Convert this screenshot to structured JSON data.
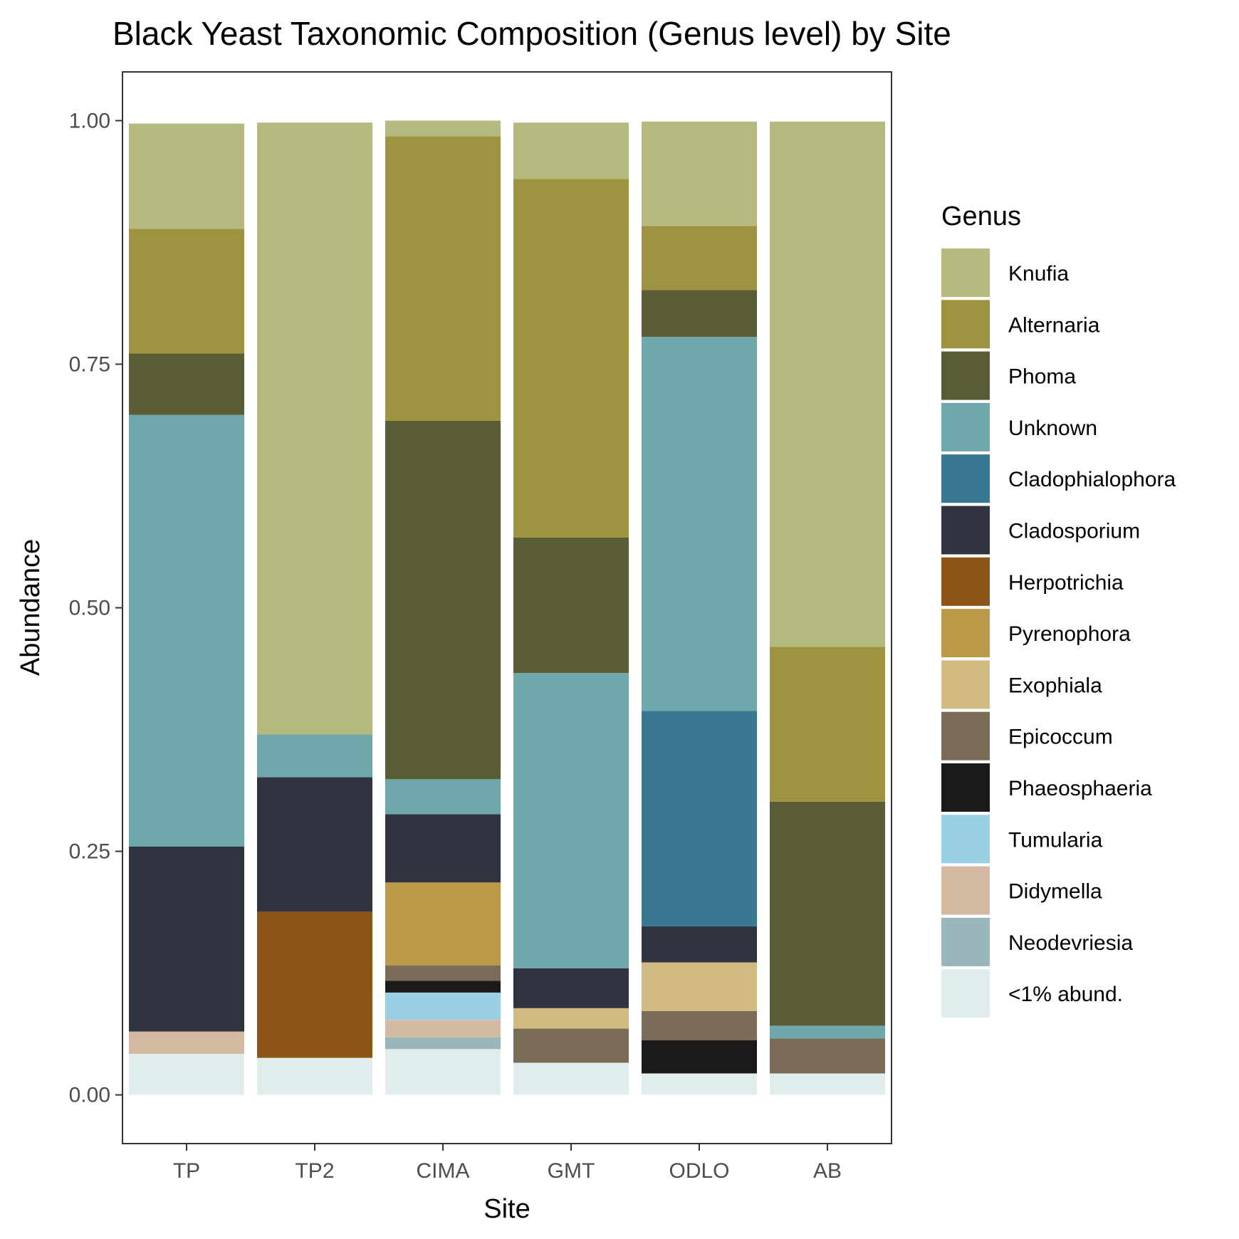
{
  "chart_data": {
    "type": "bar",
    "stacked": true,
    "title": "Black Yeast Taxonomic Composition (Genus level) by Site",
    "xlabel": "Site",
    "ylabel": "Abundance",
    "ylim": [
      -0.05,
      1.05
    ],
    "yticks": [
      0,
      0.25,
      0.5,
      0.75,
      1
    ],
    "ytick_labels": [
      "0.00",
      "0.25",
      "0.50",
      "0.75",
      "1.00"
    ],
    "grid": false,
    "legend": {
      "title": "Genus",
      "placement": "right"
    },
    "categories": [
      "TP",
      "TP2",
      "CIMA",
      "GMT",
      "ODLO",
      "AB"
    ],
    "series": [
      {
        "name": "<1% abund.",
        "color": "#E1EDEC",
        "values": [
          0.042,
          0.038,
          0.047,
          0.033,
          0.022,
          0.022
        ]
      },
      {
        "name": "Neodevriesia",
        "color": "#9AB6BD",
        "values": [
          0,
          0,
          0.012,
          0,
          0,
          0
        ]
      },
      {
        "name": "Didymella",
        "color": "#D4BAA2",
        "values": [
          0.023,
          0,
          0.018,
          0,
          0,
          0
        ]
      },
      {
        "name": "Tumularia",
        "color": "#99D0E5",
        "values": [
          0,
          0,
          0.028,
          0,
          0,
          0
        ]
      },
      {
        "name": "Phaeosphaeria",
        "color": "#1C1A18",
        "values": [
          0,
          0,
          0.012,
          0,
          0.034,
          0
        ]
      },
      {
        "name": "Epicoccum",
        "color": "#7B6C57",
        "values": [
          0,
          0,
          0.016,
          0.035,
          0.03,
          0.036
        ]
      },
      {
        "name": "Exophiala",
        "color": "#D1BB82",
        "values": [
          0,
          0,
          0,
          0.021,
          0.05,
          0
        ]
      },
      {
        "name": "Pyrenophora",
        "color": "#BA9A47",
        "values": [
          0,
          0,
          0.085,
          0,
          0,
          0
        ]
      },
      {
        "name": "Herpotrichia",
        "color": "#8C5515",
        "values": [
          0,
          0.15,
          0,
          0,
          0,
          0
        ]
      },
      {
        "name": "Cladosporium",
        "color": "#303440",
        "values": [
          0.19,
          0.138,
          0.07,
          0.041,
          0.037,
          0
        ]
      },
      {
        "name": "Cladophialophora",
        "color": "#387892",
        "values": [
          0,
          0,
          0,
          0,
          0.221,
          0
        ]
      },
      {
        "name": "Unknown",
        "color": "#6FA8AA",
        "values": [
          0.443,
          0.044,
          0.036,
          0.303,
          0.384,
          0.013
        ]
      },
      {
        "name": "Phoma",
        "color": "#5A5C34",
        "values": [
          0.063,
          0,
          0.368,
          0.139,
          0.048,
          0.23
        ]
      },
      {
        "name": "Alternaria",
        "color": "#9D9340",
        "values": [
          0.128,
          0,
          0.292,
          0.368,
          0.066,
          0.159
        ]
      },
      {
        "name": "Knufia",
        "color": "#B6B97E",
        "values": [
          0.108,
          0.628,
          0.016,
          0.058,
          0.107,
          0.539
        ]
      }
    ]
  }
}
